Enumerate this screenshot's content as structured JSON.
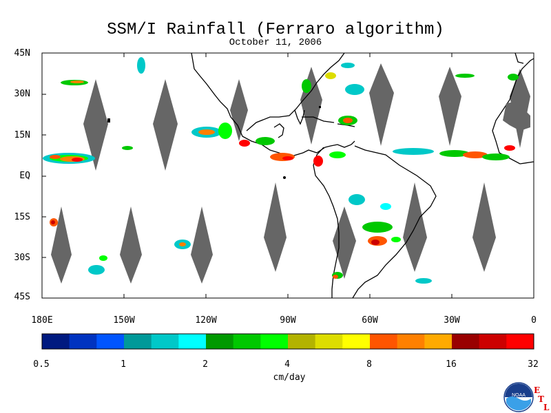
{
  "title": "SSM/I Rainfall (Ferraro algorithm)",
  "subtitle": "October 11, 2006",
  "map": {
    "lat_labels": [
      "45N",
      "30N",
      "15N",
      "EQ",
      "15S",
      "30S",
      "45S"
    ],
    "lon_labels": [
      "180E",
      "150W",
      "120W",
      "90W",
      "60W",
      "30W",
      "0"
    ]
  },
  "colorbar": {
    "colors": [
      "#001a80",
      "#0033c0",
      "#0055ff",
      "#009999",
      "#00c8c8",
      "#00ffff",
      "#009900",
      "#00c800",
      "#00ff00",
      "#b3b300",
      "#dddd00",
      "#ffff00",
      "#ff5500",
      "#ff8000",
      "#ffaa00",
      "#990000",
      "#cc0000",
      "#ff0000"
    ],
    "tick_labels": [
      "0.5",
      "1",
      "2",
      "4",
      "8",
      "16",
      "32"
    ],
    "unit": "cm/day"
  },
  "logo": {
    "text": "NOAA",
    "etl": [
      "E",
      "T",
      "L"
    ]
  }
}
